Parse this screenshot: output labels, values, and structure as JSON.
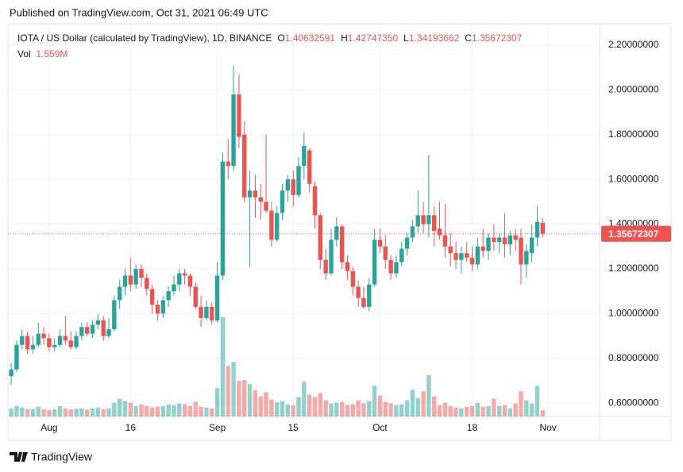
{
  "published": "Published on TradingView.com, Oct 31, 2021 06:49 UTC",
  "brand": "TradingView",
  "chart_data": {
    "type": "candlestick",
    "title": "IOTA / US Dollar (calculated by TradingView), 1D, BINANCE",
    "legend": [
      {
        "key": "O",
        "value": "1.40632591"
      },
      {
        "key": "H",
        "value": "1.42747350"
      },
      {
        "key": "L",
        "value": "1.34193662"
      },
      {
        "key": "C",
        "value": "1.35672307"
      }
    ],
    "volume_legend": {
      "key": "Vol",
      "value": "1.559M"
    },
    "last_label": "1.35672307",
    "up_color": "#26a69a",
    "down_color": "#ef5350",
    "open": [
      0.72,
      0.75,
      0.86,
      0.9,
      0.84,
      0.86,
      0.91,
      0.89,
      0.85,
      0.86,
      0.9,
      0.88,
      0.85,
      0.9,
      0.94,
      0.91,
      0.95,
      0.97,
      0.9,
      0.93,
      1.06,
      1.12,
      1.17,
      1.13,
      1.2,
      1.16,
      1.11,
      1.04,
      1.0,
      1.06,
      1.1,
      1.13,
      1.18,
      1.17,
      1.12,
      1.03,
      0.98,
      1.03,
      0.97,
      1.17,
      1.68,
      1.66,
      1.98,
      1.8,
      1.52,
      1.55,
      1.52,
      1.5,
      1.46,
      1.33,
      1.45,
      1.55,
      1.6,
      1.53,
      1.66,
      1.73,
      1.57,
      1.44,
      1.24,
      1.18,
      1.33,
      1.39,
      1.23,
      1.19,
      1.12,
      1.07,
      1.03,
      1.13,
      1.33,
      1.3,
      1.24,
      1.18,
      1.23,
      1.29,
      1.34,
      1.39,
      1.44,
      1.4,
      1.44,
      1.38,
      1.35,
      1.3,
      1.27,
      1.24,
      1.27,
      1.25,
      1.22,
      1.3,
      1.28,
      1.34,
      1.32,
      1.34,
      1.31,
      1.35,
      1.34,
      1.22,
      1.27,
      1.34,
      1.40632591
    ],
    "high": [
      0.78,
      0.88,
      0.93,
      0.92,
      0.9,
      0.96,
      0.94,
      0.91,
      0.89,
      0.93,
      0.99,
      0.92,
      0.92,
      0.96,
      0.96,
      0.97,
      1.0,
      0.99,
      0.98,
      1.08,
      1.15,
      1.2,
      1.25,
      1.22,
      1.22,
      1.18,
      1.13,
      1.06,
      1.08,
      1.12,
      1.17,
      1.2,
      1.2,
      1.18,
      1.14,
      1.08,
      1.06,
      1.05,
      1.23,
      1.72,
      1.78,
      2.11,
      2.07,
      1.86,
      1.64,
      1.62,
      1.58,
      1.8,
      1.5,
      1.48,
      1.58,
      1.62,
      1.64,
      1.7,
      1.81,
      1.74,
      1.59,
      1.45,
      1.29,
      1.38,
      1.43,
      1.4,
      1.26,
      1.21,
      1.15,
      1.12,
      1.16,
      1.38,
      1.38,
      1.35,
      1.26,
      1.26,
      1.32,
      1.36,
      1.42,
      1.55,
      1.5,
      1.71,
      1.48,
      1.5,
      1.49,
      1.36,
      1.32,
      1.3,
      1.32,
      1.3,
      1.34,
      1.38,
      1.36,
      1.4,
      1.36,
      1.45,
      1.37,
      1.38,
      1.38,
      1.31,
      1.4,
      1.48,
      1.4274735
    ],
    "low": [
      0.68,
      0.74,
      0.84,
      0.82,
      0.82,
      0.85,
      0.86,
      0.83,
      0.83,
      0.85,
      0.86,
      0.84,
      0.84,
      0.88,
      0.9,
      0.89,
      0.93,
      0.88,
      0.89,
      0.92,
      1.02,
      1.08,
      1.1,
      1.11,
      1.12,
      1.08,
      1.0,
      0.97,
      0.98,
      1.03,
      1.08,
      1.1,
      1.13,
      1.08,
      1.02,
      0.94,
      0.97,
      0.95,
      0.96,
      1.15,
      1.6,
      1.64,
      1.74,
      1.5,
      1.21,
      1.43,
      1.42,
      1.45,
      1.3,
      1.32,
      1.42,
      1.5,
      1.48,
      1.52,
      1.6,
      1.54,
      1.38,
      1.2,
      1.15,
      1.17,
      1.3,
      1.2,
      1.15,
      1.08,
      1.03,
      1.02,
      1.01,
      1.12,
      1.27,
      1.2,
      1.15,
      1.16,
      1.21,
      1.26,
      1.32,
      1.36,
      1.36,
      1.34,
      1.3,
      1.33,
      1.25,
      1.21,
      1.2,
      1.18,
      1.23,
      1.19,
      1.2,
      1.25,
      1.24,
      1.28,
      1.27,
      1.25,
      1.26,
      1.28,
      1.13,
      1.16,
      1.23,
      1.3,
      1.34193662
    ],
    "close": [
      0.75,
      0.86,
      0.9,
      0.84,
      0.86,
      0.91,
      0.89,
      0.85,
      0.86,
      0.9,
      0.88,
      0.85,
      0.9,
      0.94,
      0.91,
      0.95,
      0.97,
      0.9,
      0.93,
      1.06,
      1.12,
      1.17,
      1.13,
      1.2,
      1.16,
      1.11,
      1.04,
      1.0,
      1.06,
      1.1,
      1.13,
      1.18,
      1.17,
      1.12,
      1.03,
      0.98,
      1.03,
      0.97,
      1.17,
      1.68,
      1.66,
      1.98,
      1.79,
      1.52,
      1.55,
      1.52,
      1.5,
      1.46,
      1.33,
      1.45,
      1.55,
      1.6,
      1.53,
      1.66,
      1.75,
      1.58,
      1.44,
      1.24,
      1.18,
      1.33,
      1.39,
      1.23,
      1.19,
      1.12,
      1.07,
      1.03,
      1.13,
      1.33,
      1.3,
      1.24,
      1.18,
      1.23,
      1.29,
      1.34,
      1.39,
      1.44,
      1.4,
      1.44,
      1.37,
      1.35,
      1.3,
      1.27,
      1.24,
      1.27,
      1.25,
      1.22,
      1.3,
      1.28,
      1.34,
      1.32,
      1.34,
      1.31,
      1.35,
      1.33,
      1.22,
      1.28,
      1.34,
      1.41,
      1.35672307
    ],
    "volume": [
      2.0,
      2.6,
      2.2,
      1.8,
      1.9,
      2.4,
      1.8,
      1.6,
      1.8,
      2.6,
      2.0,
      1.8,
      1.9,
      2.0,
      1.7,
      2.0,
      2.2,
      1.8,
      2.0,
      3.4,
      4.4,
      3.8,
      3.4,
      2.6,
      3.0,
      2.6,
      2.2,
      2.4,
      2.6,
      3.0,
      2.8,
      3.2,
      3.0,
      2.6,
      3.6,
      2.4,
      2.2,
      2.0,
      7.0,
      24.5,
      12.5,
      13.5,
      8.8,
      9.0,
      8.0,
      6.5,
      5.0,
      6.0,
      4.2,
      3.5,
      3.8,
      3.0,
      2.8,
      4.8,
      8.6,
      5.4,
      4.8,
      5.8,
      4.0,
      3.2,
      3.4,
      3.6,
      2.8,
      3.0,
      4.0,
      3.2,
      3.8,
      7.6,
      5.2,
      3.6,
      3.2,
      2.8,
      3.0,
      4.0,
      6.6,
      4.6,
      6.2,
      10.2,
      5.0,
      2.8,
      3.4,
      2.6,
      2.2,
      2.0,
      2.4,
      2.6,
      3.4,
      2.4,
      2.6,
      4.4,
      2.6,
      2.8,
      2.0,
      3.2,
      6.2,
      4.0,
      3.2,
      7.6,
      1.559
    ],
    "ylim": [
      0.54,
      2.296
    ],
    "yticks": [
      {
        "value": 0.6,
        "label": "0.60000000"
      },
      {
        "value": 0.8,
        "label": "0.80000000"
      },
      {
        "value": 1.0,
        "label": "1.00000000"
      },
      {
        "value": 1.2,
        "label": "1.20000000"
      },
      {
        "value": 1.4,
        "label": "1.40000000"
      },
      {
        "value": 1.6,
        "label": "1.60000000"
      },
      {
        "value": 1.8,
        "label": "1.80000000"
      },
      {
        "value": 2.0,
        "label": "2.00000000"
      },
      {
        "value": 2.2,
        "label": "2.20000000"
      }
    ],
    "xlim": [
      -0.6,
      108.5
    ],
    "xticks": [
      {
        "value": 7,
        "label": "Aug"
      },
      {
        "value": 22,
        "label": "16"
      },
      {
        "value": 38,
        "label": "Sep"
      },
      {
        "value": 52,
        "label": "15"
      },
      {
        "value": 68,
        "label": "Oct"
      },
      {
        "value": 85,
        "label": "18"
      },
      {
        "value": 99,
        "label": "Nov"
      }
    ],
    "grid": true
  }
}
